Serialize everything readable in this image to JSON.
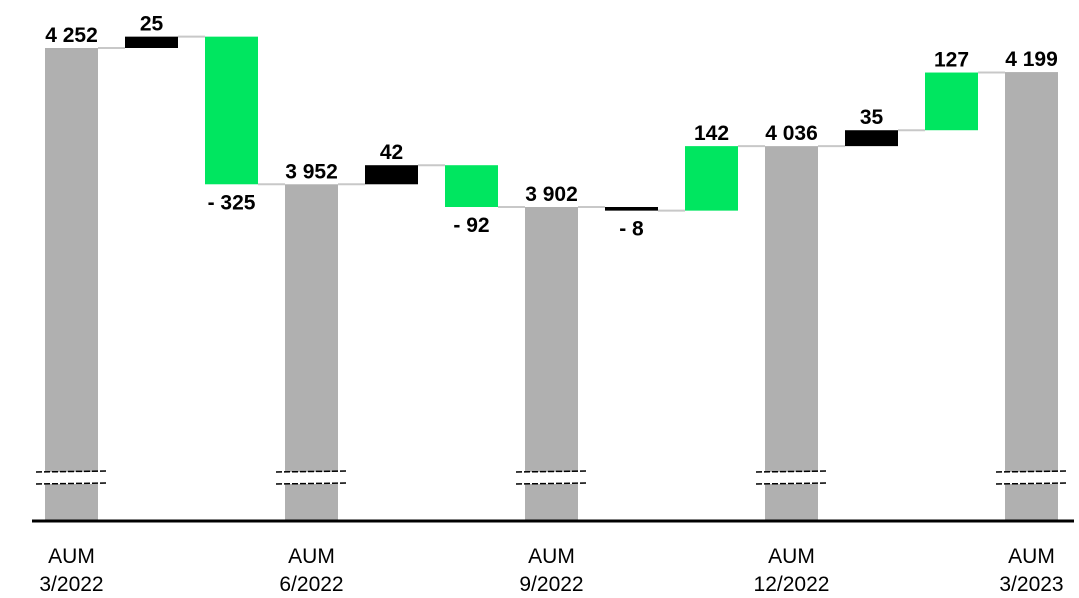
{
  "chart_data": {
    "type": "bar",
    "subtype": "waterfall",
    "title": "",
    "xlabel": "",
    "ylabel": "",
    "axis_break": true,
    "grid": false,
    "legend": "none",
    "colors": {
      "total": "#b0b0b0",
      "increase_black": "#000000",
      "change_green": "#00e660",
      "connector": "#c8c8c8",
      "axis": "#000000"
    },
    "bars": [
      {
        "kind": "total",
        "label": "4 252",
        "value": 4252,
        "category": [
          "AUM",
          "3/2022"
        ]
      },
      {
        "kind": "black",
        "label": "25",
        "value": 25
      },
      {
        "kind": "green",
        "label": "- 325",
        "value": -325
      },
      {
        "kind": "total",
        "label": "3 952",
        "value": 3952,
        "category": [
          "AUM",
          "6/2022"
        ]
      },
      {
        "kind": "black",
        "label": "42",
        "value": 42
      },
      {
        "kind": "green",
        "label": "- 92",
        "value": -92
      },
      {
        "kind": "total",
        "label": "3 902",
        "value": 3902,
        "category": [
          "AUM",
          "9/2022"
        ]
      },
      {
        "kind": "black",
        "label": "- 8",
        "value": -8
      },
      {
        "kind": "green",
        "label": "142",
        "value": 142
      },
      {
        "kind": "total",
        "label": "4 036",
        "value": 4036,
        "category": [
          "AUM",
          "12/2022"
        ]
      },
      {
        "kind": "black",
        "label": "35",
        "value": 35
      },
      {
        "kind": "green",
        "label": "127",
        "value": 127
      },
      {
        "kind": "total",
        "label": "4 199",
        "value": 4199,
        "category": [
          "AUM",
          "3/2023"
        ]
      }
    ]
  }
}
